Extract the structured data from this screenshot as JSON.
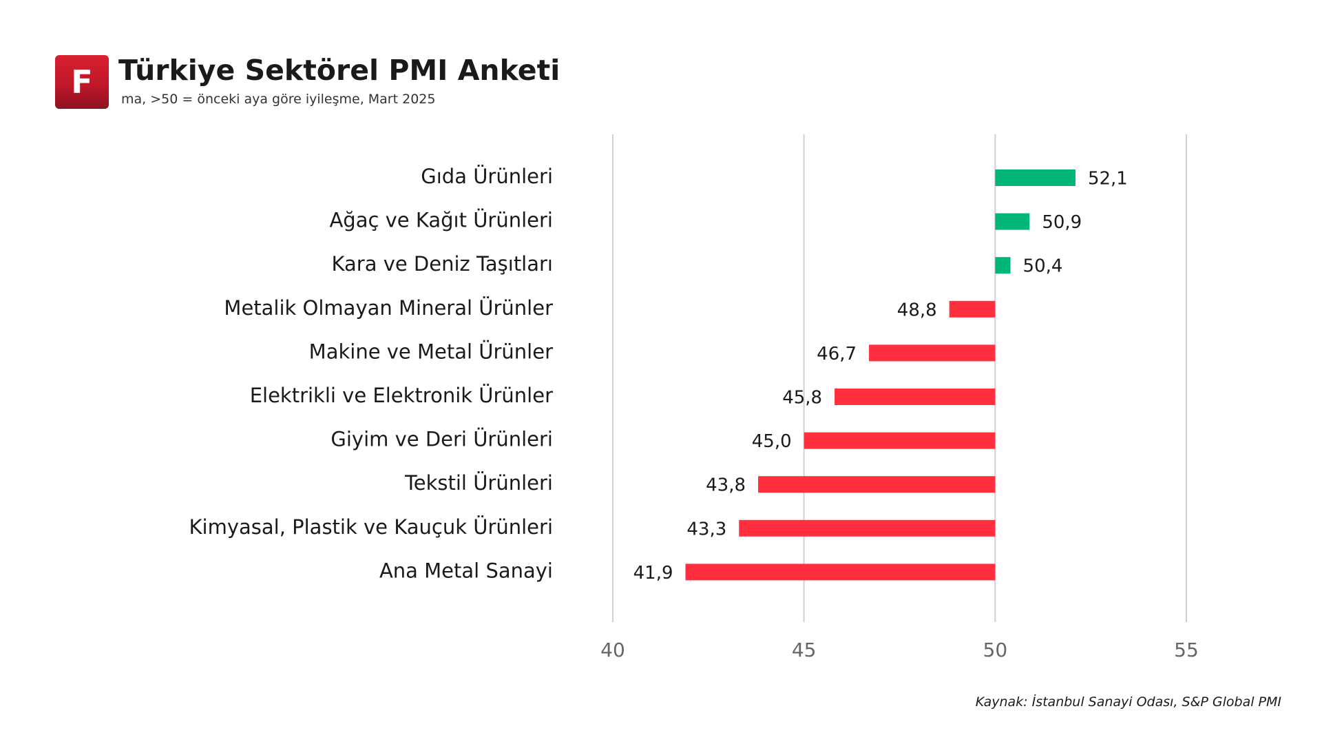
{
  "header": {
    "logo_letter": "F",
    "title": "Türkiye Sektörel PMI Anketi",
    "subtitle": "ma, >50 = önceki aya göre iyileşme, Mart 2025"
  },
  "source": "Kaynak: İstanbul Sanayi Odası, S&P Global PMI",
  "colors": {
    "positive": "#00b67a",
    "negative": "#ff2f3f",
    "grid": "#d0d0d0",
    "category_text": "#1a1a1a",
    "tick_text": "#666666",
    "logo": "#c8192b"
  },
  "chart_data": {
    "type": "bar",
    "orientation": "horizontal",
    "baseline": 50,
    "categories": [
      "Gıda Ürünleri",
      "Ağaç ve Kağıt Ürünleri",
      "Kara ve Deniz Taşıtları",
      "Metalik Olmayan Mineral Ürünler",
      "Makine ve Metal Ürünler",
      "Elektrikli ve Elektronik Ürünler",
      "Giyim ve Deri Ürünleri",
      "Tekstil Ürünleri",
      "Kimyasal, Plastik ve Kauçuk Ürünleri",
      "Ana Metal Sanayi"
    ],
    "values": [
      52.1,
      50.9,
      50.4,
      48.8,
      46.7,
      45.8,
      45.0,
      43.8,
      43.3,
      41.9
    ],
    "value_labels": [
      "52,1",
      "50,9",
      "50,4",
      "48,8",
      "46,7",
      "45,8",
      "45,0",
      "43,8",
      "43,3",
      "41,9"
    ],
    "xlim": [
      40,
      55
    ],
    "xticks": [
      40,
      45,
      50,
      55
    ],
    "xtick_labels": [
      "40",
      "45",
      "50",
      "55"
    ],
    "grid": true,
    "title": "Türkiye Sektörel PMI Anketi",
    "subtitle": "ma, >50 = önceki aya göre iyileşme, Mart 2025",
    "xlabel": "",
    "ylabel": ""
  }
}
